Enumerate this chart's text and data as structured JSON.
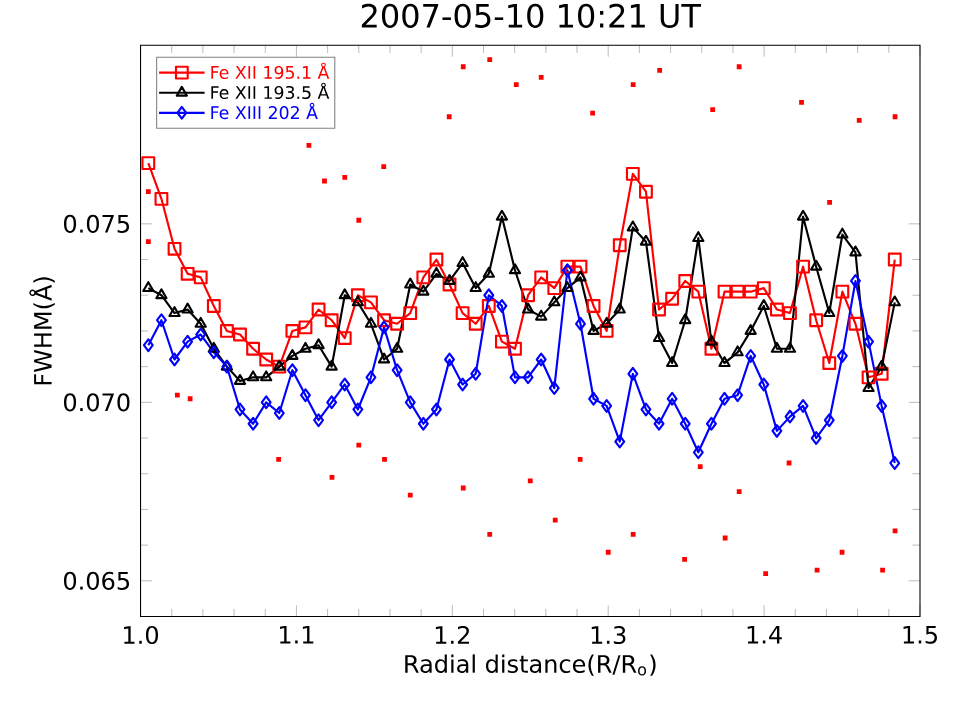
{
  "chart_data": {
    "type": "line",
    "title": "2007-05-10 10:21 UT",
    "xlabel": "Radial distance(R/R$_{o}$)",
    "ylabel": "FWHM(Å)",
    "xlim": [
      1.0,
      1.5
    ],
    "ylim": [
      0.064,
      0.08
    ],
    "xticks": [
      {
        "value": 1.0,
        "label": "1.0"
      },
      {
        "value": 1.1,
        "label": "1.1"
      },
      {
        "value": 1.2,
        "label": "1.2"
      },
      {
        "value": 1.3,
        "label": "1.3"
      },
      {
        "value": 1.4,
        "label": "1.4"
      },
      {
        "value": 1.5,
        "label": "1.5"
      }
    ],
    "yticks": [
      {
        "value": 0.065,
        "label": "0.065"
      },
      {
        "value": 0.07,
        "label": "0.070"
      },
      {
        "value": 0.075,
        "label": "0.075"
      }
    ],
    "legend": "top left",
    "grid": false,
    "x": [
      1.005,
      1.0134,
      1.0218,
      1.0302,
      1.0386,
      1.047,
      1.0554,
      1.0638,
      1.0722,
      1.0806,
      1.089,
      1.0974,
      1.1058,
      1.1142,
      1.1226,
      1.131,
      1.1394,
      1.1478,
      1.1562,
      1.1646,
      1.173,
      1.1814,
      1.1898,
      1.1982,
      1.2066,
      1.215,
      1.2234,
      1.2318,
      1.2402,
      1.2486,
      1.257,
      1.2654,
      1.2738,
      1.2822,
      1.2906,
      1.299,
      1.3074,
      1.3158,
      1.3242,
      1.3326,
      1.341,
      1.3494,
      1.3578,
      1.3662,
      1.3746,
      1.383,
      1.3914,
      1.3998,
      1.4082,
      1.4166,
      1.425,
      1.4334,
      1.4418,
      1.4502,
      1.4586,
      1.467,
      1.4754,
      1.4838
    ],
    "series": [
      {
        "type": "scatter",
        "color": "#ff0000",
        "marker": "square",
        "x": [
          1.108,
          1.131,
          1.005,
          1.005,
          1.0318,
          1.0236,
          1.0886,
          1.1228,
          1.14,
          1.1565,
          1.118,
          1.14,
          1.156,
          1.207,
          1.224,
          1.173,
          1.207,
          1.224,
          1.266,
          1.3,
          1.316,
          1.29,
          1.316,
          1.257,
          1.241,
          1.333,
          1.198,
          1.25,
          1.282,
          1.384,
          1.401,
          1.434,
          1.45,
          1.476,
          1.484,
          1.484,
          1.424,
          1.367,
          1.349,
          1.375,
          1.461,
          1.442,
          1.416,
          1.384,
          1.359
        ],
        "values": [
          0.0772,
          0.0763,
          0.0759,
          0.0745,
          0.0701,
          0.0702,
          0.0684,
          0.0679,
          0.0688,
          0.0684,
          0.0762,
          0.0751,
          0.0766,
          0.0794,
          0.0796,
          0.0674,
          0.0676,
          0.0663,
          0.0667,
          0.0658,
          0.0663,
          0.0781,
          0.0789,
          0.0791,
          0.0789,
          0.0793,
          0.078,
          0.0678,
          0.0684,
          0.0794,
          0.0652,
          0.0653,
          0.0658,
          0.0653,
          0.0664,
          0.078,
          0.0784,
          0.0782,
          0.0656,
          0.0662,
          0.0779,
          0.0756,
          0.0683,
          0.0675,
          0.0682
        ]
      },
      {
        "name": "Fe XII 195.1 Å",
        "color": "#ff0000",
        "marker": "square",
        "values": [
          0.0767,
          0.0757,
          0.0743,
          0.0736,
          0.0735,
          0.0727,
          0.072,
          0.0719,
          0.0715,
          0.0712,
          0.071,
          0.072,
          0.0721,
          0.0726,
          0.0723,
          0.0718,
          0.073,
          0.0728,
          0.0723,
          0.0722,
          0.0725,
          0.0735,
          0.074,
          0.0733,
          0.0725,
          0.0722,
          0.0727,
          0.0717,
          0.0715,
          0.073,
          0.0735,
          0.0732,
          0.0738,
          0.0738,
          0.0727,
          0.072,
          0.0744,
          0.0764,
          0.0759,
          0.0726,
          0.0729,
          0.0734,
          0.0731,
          0.0715,
          0.0731,
          0.0731,
          0.0731,
          0.0732,
          0.0726,
          0.0725,
          0.0738,
          0.0723,
          0.0711,
          0.0731,
          0.0722,
          0.0707,
          0.0708,
          0.074
        ]
      },
      {
        "name": "Fe XII 193.5 Å",
        "color": "#000000",
        "marker": "triangle",
        "values": [
          0.0732,
          0.073,
          0.0725,
          0.0726,
          0.0722,
          0.0715,
          0.071,
          0.0706,
          0.0707,
          0.0707,
          0.071,
          0.0713,
          0.0715,
          0.0716,
          0.071,
          0.073,
          0.0728,
          0.0722,
          0.0712,
          0.0715,
          0.0733,
          0.0731,
          0.0736,
          0.0734,
          0.0739,
          0.0732,
          0.0736,
          0.0752,
          0.0737,
          0.0726,
          0.0724,
          0.0728,
          0.0732,
          0.0735,
          0.072,
          0.0722,
          0.0726,
          0.0749,
          0.0745,
          0.0718,
          0.0711,
          0.0723,
          0.0746,
          0.0717,
          0.0711,
          0.0714,
          0.072,
          0.0727,
          0.0715,
          0.0715,
          0.0752,
          0.0738,
          0.0725,
          0.0747,
          0.0742,
          0.0704,
          0.071,
          0.0728
        ]
      },
      {
        "name": "Fe XIII 202 Å",
        "color": "#0000ff",
        "marker": "diamond",
        "values": [
          0.0716,
          0.0723,
          0.0712,
          0.0717,
          0.0719,
          0.0714,
          0.071,
          0.0698,
          0.0694,
          0.07,
          0.0697,
          0.0709,
          0.0702,
          0.0695,
          0.07,
          0.0705,
          0.0698,
          0.0707,
          0.0721,
          0.0709,
          0.07,
          0.0694,
          0.0698,
          0.0712,
          0.0705,
          0.0708,
          0.073,
          0.0727,
          0.0707,
          0.0707,
          0.0712,
          0.0704,
          0.0737,
          0.0722,
          0.0701,
          0.0699,
          0.0689,
          0.0708,
          0.0698,
          0.0694,
          0.0701,
          0.0694,
          0.0686,
          0.0694,
          0.0701,
          0.0702,
          0.0713,
          0.0705,
          0.0692,
          0.0696,
          0.0699,
          0.069,
          0.0695,
          0.0713,
          0.0734,
          0.0717,
          0.0699,
          0.0683
        ]
      }
    ]
  }
}
